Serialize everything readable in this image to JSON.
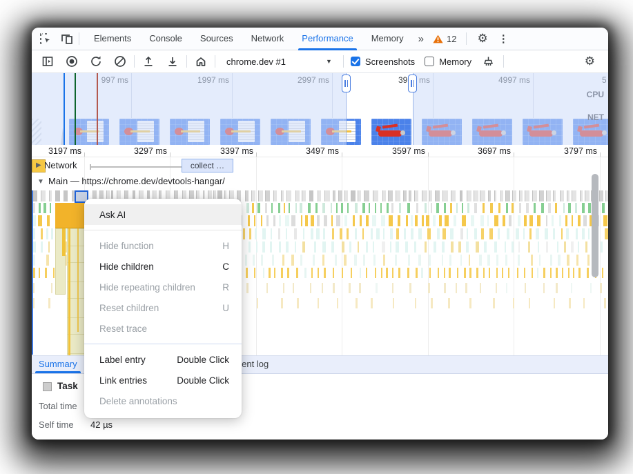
{
  "colors": {
    "accent": "#1a73e8",
    "warning": "#e8710a",
    "text": "#202124",
    "text_dim": "#80868b",
    "icon": "#3c4043",
    "strip_bg": "#e9eefb",
    "chip_bg": "#dbe5fb",
    "chip_border": "#8fb0ea",
    "film_blue": "#4b82ea",
    "plane_red": "#d93025",
    "flame_gray": "#e4e4e4",
    "flame_yellow": "#f5c84b",
    "flame_gold": "#f2b32a",
    "flame_khaki": "#ebeac6",
    "flame_mint": "#86cf92",
    "flame_cyan": "#e2f5f2",
    "net_blue": "#6d9bf0"
  },
  "tabbar": {
    "tabs": [
      {
        "label": "Elements",
        "active": false
      },
      {
        "label": "Console",
        "active": false
      },
      {
        "label": "Sources",
        "active": false
      },
      {
        "label": "Network",
        "active": false
      },
      {
        "label": "Performance",
        "active": true
      },
      {
        "label": "Memory",
        "active": false
      }
    ],
    "more_tabs": "»",
    "warning_count": "12"
  },
  "toolbar": {
    "target_selector": "chrome.dev #1",
    "screenshots_label": "Screenshots",
    "screenshots_checked": true,
    "memory_label": "Memory",
    "memory_checked": false
  },
  "overview": {
    "time_labels": [
      "997 ms",
      "1997 ms",
      "2997 ms",
      "3997 ms",
      "4997 ms",
      "5"
    ],
    "cpu_label": "CPU",
    "net_label": "NET"
  },
  "ruler": {
    "labels": [
      "3197 ms",
      "3297 ms",
      "3397 ms",
      "3497 ms",
      "3597 ms",
      "3697 ms",
      "3797 ms"
    ]
  },
  "tracks": {
    "network": {
      "label": "Network",
      "chip": "collect …"
    },
    "main": {
      "label": "Main — https://chrome.dev/devtools-hangar/"
    }
  },
  "context_menu": {
    "items": [
      {
        "label": "Ask AI",
        "shortcut": "",
        "enabled": true,
        "hover": true
      },
      {
        "separator": true
      },
      {
        "label": "Hide function",
        "shortcut": "H",
        "enabled": false
      },
      {
        "label": "Hide children",
        "shortcut": "C",
        "enabled": true
      },
      {
        "label": "Hide repeating children",
        "shortcut": "R",
        "enabled": false
      },
      {
        "label": "Reset children",
        "shortcut": "U",
        "enabled": false
      },
      {
        "label": "Reset trace",
        "shortcut": "",
        "enabled": false
      },
      {
        "separator": true,
        "blue": true
      },
      {
        "label": "Label entry",
        "shortcut": "Double Click",
        "enabled": true
      },
      {
        "label": "Link entries",
        "shortcut": "Double Click",
        "enabled": true
      },
      {
        "label": "Delete annotations",
        "shortcut": "",
        "enabled": false
      }
    ]
  },
  "bottom_tabs": {
    "summary": "Summary",
    "event_log": "Event log"
  },
  "summary": {
    "legend_label": "Task",
    "total_time_label": "Total time",
    "self_time_label": "Self time",
    "self_time_value": "42 µs"
  }
}
